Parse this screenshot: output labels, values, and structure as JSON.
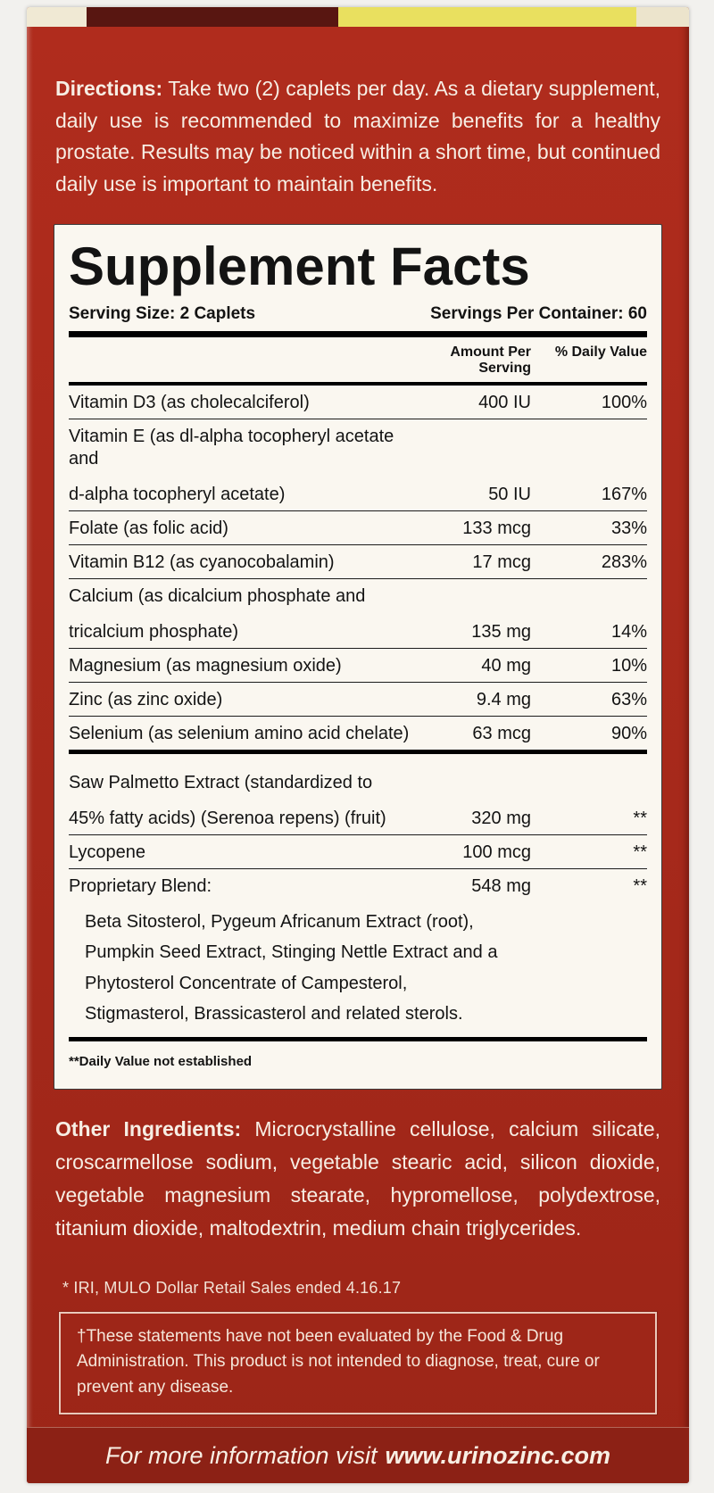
{
  "directions": {
    "label": "Directions:",
    "body": " Take two (2) caplets per day. As a dietary supplement, daily use is recommended to maximize benefits for a healthy prostate. Results may be noticed within a short time, but continued daily use is important to maintain benefits."
  },
  "supplement_facts": {
    "title": "Supplement Facts",
    "serving_size": "Serving Size: 2 Caplets",
    "servings_per_container": "Servings Per Container: 60",
    "col_amount": "Amount Per Serving",
    "col_dv": "% Daily Value",
    "rows": [
      {
        "name": "Vitamin D3 (as cholecalciferol)",
        "amount": "400 IU",
        "dv": "100%"
      },
      {
        "name": "Vitamin E (as dl-alpha tocopheryl acetate and",
        "name2": "d-alpha tocopheryl acetate)",
        "amount": "50 IU",
        "dv": "167%"
      },
      {
        "name": "Folate (as folic acid)",
        "amount": "133 mcg",
        "dv": "33%"
      },
      {
        "name": "Vitamin B12 (as cyanocobalamin)",
        "amount": "17 mcg",
        "dv": "283%"
      },
      {
        "name": "Calcium (as dicalcium phosphate and",
        "name2": "tricalcium phosphate)",
        "amount": "135 mg",
        "dv": "14%"
      },
      {
        "name": "Magnesium (as magnesium oxide)",
        "amount": "40 mg",
        "dv": "10%"
      },
      {
        "name": "Zinc (as zinc oxide)",
        "amount": "9.4 mg",
        "dv": "63%"
      },
      {
        "name": "Selenium (as selenium amino acid chelate)",
        "amount": "63 mcg",
        "dv": "90%",
        "divider_after": "thick"
      },
      {
        "name": "Saw Palmetto Extract (standardized to",
        "name2": "45% fatty acids) (Serenoa repens) (fruit)",
        "amount": "320 mg",
        "dv": "**",
        "gap_before": true
      },
      {
        "name": "Lycopene",
        "amount": "100 mcg",
        "dv": "**"
      },
      {
        "name": "Proprietary Blend:",
        "amount": "548 mg",
        "dv": "**",
        "divider_after": "thick",
        "sub": "Beta Sitosterol, Pygeum Africanum Extract (root), Pumpkin Seed Extract, Stinging Nettle Extract and a Phytosterol Concentrate of Campesterol, Stigmasterol, Brassicasterol and related sterols."
      }
    ],
    "footnote": "**Daily Value not established"
  },
  "other_ingredients": {
    "label": "Other Ingredients:",
    "body": " Microcrystalline cellulose, calcium silicate, croscarmellose sodium, vegetable stearic acid, silicon dioxide, vegetable magnesium stearate, hypromellose, polydextrose, titanium dioxide, maltodextrin, medium chain triglycerides."
  },
  "footnotes": {
    "iri": "* IRI, MULO Dollar Retail Sales ended 4.16.17",
    "disclaimer": "†These statements have not been evaluated by the Food & Drug Administration. This product is not intended to diagnose, treat, cure or prevent any disease."
  },
  "footer": {
    "prefix": "For more information visit",
    "url": "www.urinozinc.com"
  },
  "colors": {
    "panel_red": "#a6291b",
    "footer_red": "#8c2115",
    "label_bg": "#faf7f0",
    "top_edge_yellow": "#e9e05f",
    "top_edge_maroon": "#581611",
    "text_cream": "#f7eee4",
    "text_black": "#131313"
  }
}
